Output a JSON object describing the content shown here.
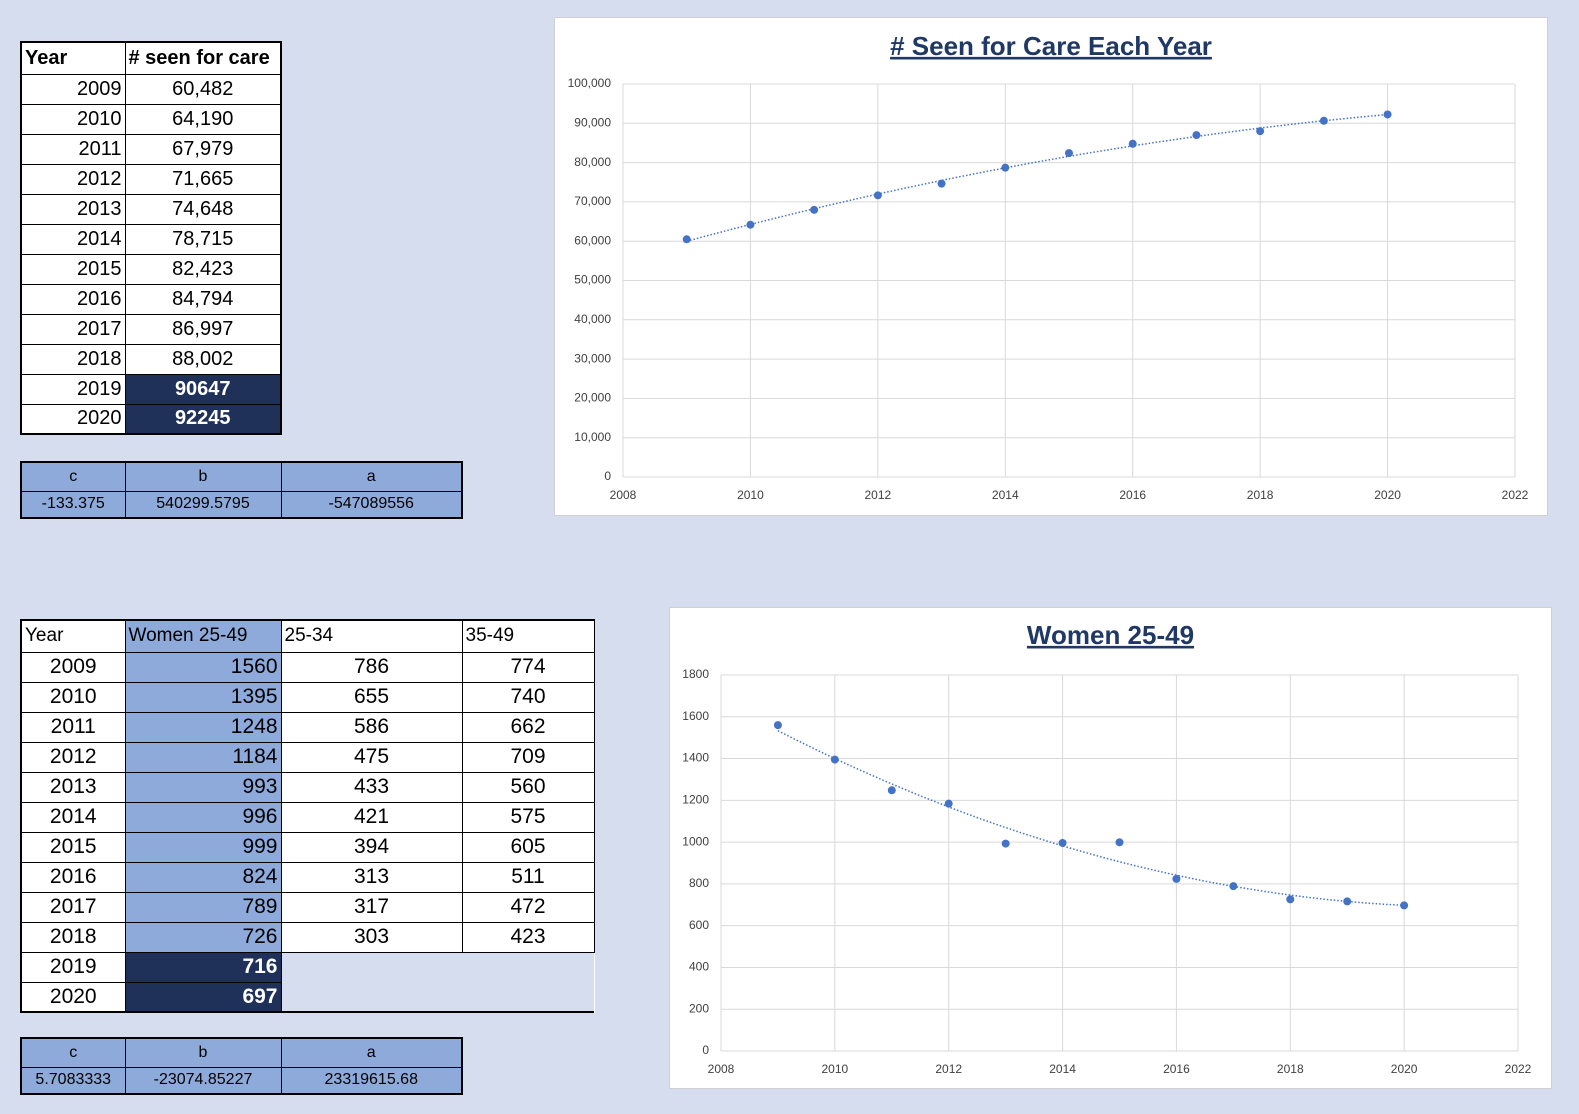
{
  "tables": {
    "seen_for_care": {
      "header": [
        "Year",
        "# seen for care"
      ],
      "rows": [
        [
          "2009",
          "60,482"
        ],
        [
          "2010",
          "64,190"
        ],
        [
          "2011",
          "67,979"
        ],
        [
          "2012",
          "71,665"
        ],
        [
          "2013",
          "74,648"
        ],
        [
          "2014",
          "78,715"
        ],
        [
          "2015",
          "82,423"
        ],
        [
          "2016",
          "84,794"
        ],
        [
          "2017",
          "86,997"
        ],
        [
          "2018",
          "88,002"
        ],
        [
          "2019",
          "90647"
        ],
        [
          "2020",
          "92245"
        ]
      ]
    },
    "seen_coefficients": {
      "header": [
        "c",
        "b",
        "a"
      ],
      "rows": [
        [
          "-133.375",
          "540299.5795",
          "-547089556"
        ]
      ]
    },
    "women": {
      "header": [
        "Year",
        "Women 25-49",
        "25-34",
        "35-49"
      ],
      "rows": [
        [
          "2009",
          "1560",
          "786",
          "774"
        ],
        [
          "2010",
          "1395",
          "655",
          "740"
        ],
        [
          "2011",
          "1248",
          "586",
          "662"
        ],
        [
          "2012",
          "1184",
          "475",
          "709"
        ],
        [
          "2013",
          "993",
          "433",
          "560"
        ],
        [
          "2014",
          "996",
          "421",
          "575"
        ],
        [
          "2015",
          "999",
          "394",
          "605"
        ],
        [
          "2016",
          "824",
          "313",
          "511"
        ],
        [
          "2017",
          "789",
          "317",
          "472"
        ],
        [
          "2018",
          "726",
          "303",
          "423"
        ],
        [
          "2019",
          "716"
        ],
        [
          "2020",
          "697"
        ]
      ]
    },
    "women_coefficients": {
      "header": [
        "c",
        "b",
        "a"
      ],
      "rows": [
        [
          "5.7083333",
          "-23074.85227",
          "23319615.68"
        ]
      ]
    }
  },
  "chart_data": [
    {
      "type": "scatter",
      "title": "# Seen for Care Each Year",
      "x": [
        2009,
        2010,
        2011,
        2012,
        2013,
        2014,
        2015,
        2016,
        2017,
        2018,
        2019,
        2020
      ],
      "values": [
        60482,
        64190,
        67979,
        71665,
        74648,
        78715,
        82423,
        84794,
        86997,
        88002,
        90647,
        92245
      ],
      "color": "#4472c4",
      "trendline": "polynomial",
      "grid": true,
      "xlim": [
        2008,
        2022
      ],
      "xticks": [
        2008,
        2010,
        2012,
        2014,
        2016,
        2018,
        2020,
        2022
      ],
      "ylim": [
        0,
        100000
      ],
      "yticks": [
        0,
        {
          "value": 10000,
          "label": "10,000"
        },
        {
          "value": 20000,
          "label": "20,000"
        },
        {
          "value": 30000,
          "label": "30,000"
        },
        {
          "value": 40000,
          "label": "40,000"
        },
        {
          "value": 50000,
          "label": "50,000"
        },
        {
          "value": 60000,
          "label": "60,000"
        },
        {
          "value": 70000,
          "label": "70,000"
        },
        {
          "value": 80000,
          "label": "80,000"
        },
        {
          "value": 90000,
          "label": "90,000"
        },
        {
          "value": 100000,
          "label": "100,000"
        }
      ]
    },
    {
      "type": "scatter",
      "title": "Women 25-49",
      "x": [
        2009,
        2010,
        2011,
        2012,
        2013,
        2014,
        2015,
        2016,
        2017,
        2018,
        2019,
        2020
      ],
      "values": [
        1560,
        1395,
        1248,
        1184,
        993,
        996,
        999,
        824,
        789,
        726,
        716,
        697
      ],
      "color": "#4472c4",
      "trendline": "polynomial",
      "grid": true,
      "xlim": [
        2008,
        2022
      ],
      "xticks": [
        2008,
        2010,
        2012,
        2014,
        2016,
        2018,
        2020,
        2022
      ],
      "ylim": [
        0,
        1800
      ],
      "yticks": [
        0,
        200,
        400,
        600,
        800,
        1000,
        1200,
        1400,
        1600,
        1800
      ]
    }
  ]
}
